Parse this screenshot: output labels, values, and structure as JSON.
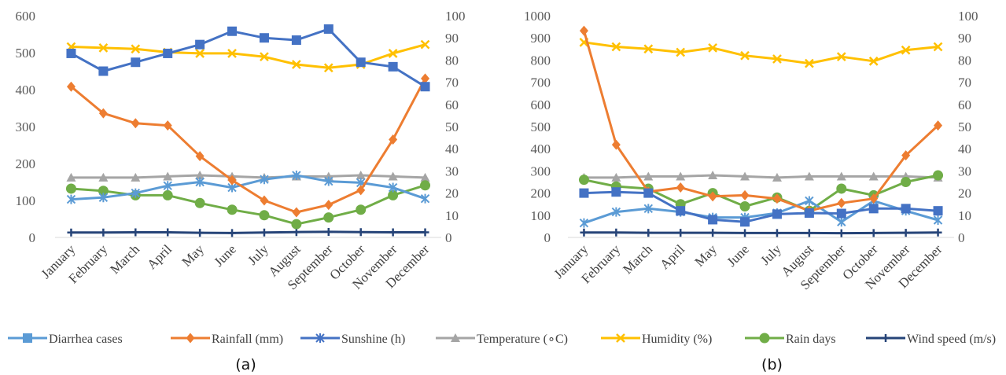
{
  "legend_series": [
    {
      "name": "Diarrhea cases",
      "color": "#5B9BD5",
      "marker": "square"
    },
    {
      "name": "Rainfall (mm)",
      "color": "#ED7D31",
      "marker": "diamond"
    },
    {
      "name": "Sunshine (h)",
      "color": "#4472C4",
      "marker": "star"
    },
    {
      "name": "Temperature (∘C)",
      "color": "#A5A5A5",
      "marker": "triangle"
    },
    {
      "name": "Humidity (%)",
      "color": "#FFC000",
      "marker": "x"
    },
    {
      "name": "Rain days",
      "color": "#70AD47",
      "marker": "circle"
    },
    {
      "name": "Wind speed (m/s)",
      "color": "#264478",
      "marker": "plus"
    }
  ],
  "chart_data": [
    {
      "type": "line",
      "caption": "(a)",
      "categories": [
        "January",
        "February",
        "March",
        "April",
        "May",
        "June",
        "July",
        "August",
        "September",
        "October",
        "November",
        "December"
      ],
      "y_left": {
        "ylim": [
          0,
          600
        ],
        "ticks": [
          0,
          100,
          200,
          300,
          400,
          500,
          600
        ]
      },
      "y_right": {
        "ylim": [
          0,
          100
        ],
        "ticks": [
          0,
          10,
          20,
          30,
          40,
          50,
          60,
          70,
          80,
          90,
          100
        ]
      },
      "grid": false,
      "legend_position": "bottom",
      "series": [
        {
          "name": "Diarrhea cases",
          "axis": "right",
          "color": "#4472C4",
          "marker": "square",
          "values": [
            83,
            75,
            79,
            83,
            87,
            93,
            90,
            89,
            94,
            79,
            77,
            68
          ]
        },
        {
          "name": "Rainfall (mm)",
          "axis": "left",
          "color": "#ED7D31",
          "marker": "diamond",
          "values": [
            408,
            336,
            309,
            303,
            220,
            155,
            100,
            68,
            88,
            128,
            265,
            430
          ]
        },
        {
          "name": "Sunshine (h)",
          "axis": "left",
          "color": "#5B9BD5",
          "marker": "star",
          "values": [
            103,
            108,
            120,
            140,
            150,
            135,
            157,
            168,
            152,
            148,
            135,
            105
          ]
        },
        {
          "name": "Temperature (∘C)",
          "axis": "right",
          "color": "#A5A5A5",
          "marker": "triangle",
          "values": [
            27,
            27,
            27,
            27.5,
            28,
            27.5,
            27,
            27.5,
            27.5,
            28,
            27.5,
            27
          ]
        },
        {
          "name": "Humidity (%)",
          "axis": "right",
          "color": "#FFC000",
          "marker": "x",
          "values": [
            86,
            85.5,
            85,
            83.5,
            83,
            83,
            81.5,
            78,
            76.5,
            78,
            83,
            87
          ]
        },
        {
          "name": "Rain days",
          "axis": "right",
          "color": "#70AD47",
          "marker": "circle",
          "values": [
            22,
            21,
            19,
            19,
            15.5,
            12.5,
            10,
            6,
            9,
            12.5,
            19,
            23.5
          ]
        },
        {
          "name": "Wind speed (m/s)",
          "axis": "right",
          "color": "#264478",
          "marker": "plus",
          "values": [
            2.2,
            2.2,
            2.3,
            2.3,
            2.1,
            2.0,
            2.2,
            2.4,
            2.5,
            2.4,
            2.3,
            2.3
          ]
        }
      ]
    },
    {
      "type": "line",
      "caption": "(b)",
      "categories": [
        "January",
        "February",
        "March",
        "April",
        "May",
        "June",
        "July",
        "August",
        "September",
        "October",
        "November",
        "December"
      ],
      "y_left": {
        "ylim": [
          0,
          1000
        ],
        "ticks": [
          0,
          100,
          200,
          300,
          400,
          500,
          600,
          700,
          800,
          900,
          1000
        ]
      },
      "y_right": {
        "ylim": [
          0,
          100
        ],
        "ticks": [
          0,
          10,
          20,
          30,
          40,
          50,
          60,
          70,
          80,
          90,
          100
        ]
      },
      "grid": false,
      "legend_position": "bottom",
      "series": [
        {
          "name": "Diarrhea cases",
          "axis": "left",
          "color": "#4472C4",
          "marker": "square",
          "values": [
            200,
            205,
            200,
            120,
            80,
            70,
            105,
            110,
            108,
            130,
            130,
            120
          ]
        },
        {
          "name": "Rainfall (mm)",
          "axis": "left",
          "color": "#ED7D31",
          "marker": "diamond",
          "values": [
            932,
            418,
            206,
            225,
            185,
            190,
            175,
            120,
            155,
            175,
            370,
            505
          ]
        },
        {
          "name": "Sunshine (h)",
          "axis": "left",
          "color": "#5B9BD5",
          "marker": "star",
          "values": [
            65,
            115,
            130,
            115,
            90,
            90,
            110,
            165,
            70,
            165,
            120,
            78
          ]
        },
        {
          "name": "Temperature (∘C)",
          "axis": "right",
          "color": "#A5A5A5",
          "marker": "triangle",
          "values": [
            27,
            27,
            27.5,
            27.5,
            28,
            27.5,
            27,
            27.5,
            27.5,
            27.5,
            27.5,
            27
          ]
        },
        {
          "name": "Humidity (%)",
          "axis": "right",
          "color": "#FFC000",
          "marker": "x",
          "values": [
            88,
            86,
            85,
            83.5,
            85.5,
            82,
            80.5,
            78.5,
            81.5,
            79.5,
            84.5,
            86
          ]
        },
        {
          "name": "Rain days",
          "axis": "right",
          "color": "#70AD47",
          "marker": "circle",
          "values": [
            26,
            23,
            22,
            15,
            20,
            14,
            18,
            12,
            22,
            19,
            25,
            28
          ]
        },
        {
          "name": "Wind speed (m/s)",
          "axis": "right",
          "color": "#264478",
          "marker": "plus",
          "values": [
            2.2,
            2.2,
            2.1,
            2.1,
            2.1,
            2.0,
            2.0,
            2.0,
            1.9,
            2.0,
            2.1,
            2.2
          ]
        }
      ]
    }
  ]
}
